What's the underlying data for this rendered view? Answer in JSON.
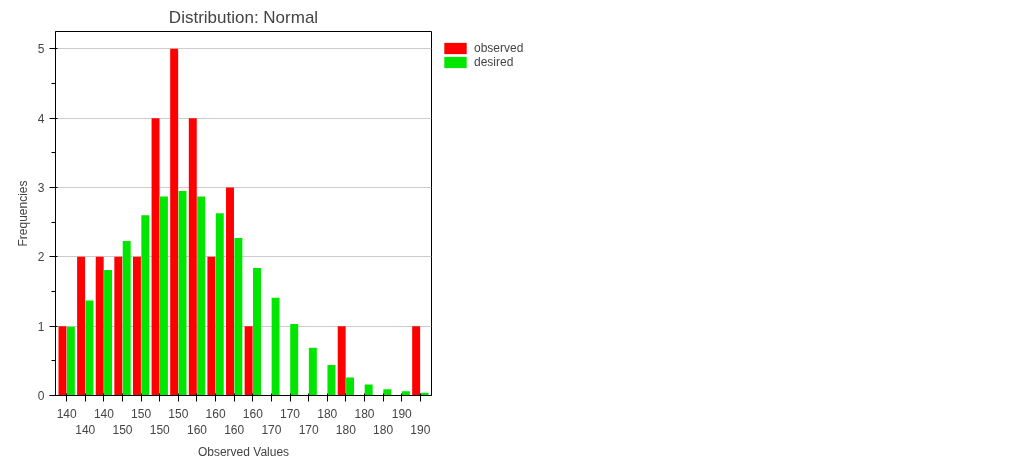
{
  "chart_data": {
    "type": "bar",
    "title": "Distribution: Normal",
    "xlabel": "Observed Values",
    "ylabel": "Frequencies",
    "categories": [
      "140",
      "140",
      "140",
      "150",
      "150",
      "150",
      "150",
      "160",
      "160",
      "160",
      "160",
      "170",
      "170",
      "170",
      "180",
      "180",
      "180",
      "180",
      "190",
      "190"
    ],
    "series": [
      {
        "name": "observed",
        "color": "#ff0000",
        "values": [
          1,
          2,
          2,
          2,
          2,
          4,
          5,
          4,
          2,
          3,
          1,
          0,
          0,
          0,
          0,
          1,
          0,
          0,
          0,
          1
        ]
      },
      {
        "name": "desired",
        "color": "#00e600",
        "values": [
          0.99,
          1.37,
          1.81,
          2.23,
          2.6,
          2.87,
          2.95,
          2.87,
          2.63,
          2.27,
          1.84,
          1.41,
          1.03,
          0.69,
          0.44,
          0.26,
          0.16,
          0.09,
          0.06,
          0.04
        ]
      }
    ],
    "ylim": [
      0,
      5.25
    ],
    "yticks": [
      0,
      1,
      2,
      3,
      4,
      5
    ],
    "grid": "y",
    "legend": "top right"
  }
}
